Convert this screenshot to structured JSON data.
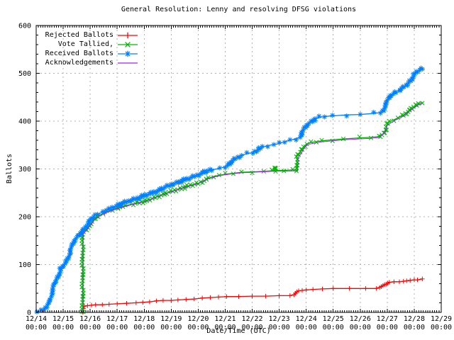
{
  "title": "General Resolution: Lenny and resolving DFSG violations",
  "axes": {
    "xlabel": "Date/Time (UTC)",
    "ylabel": "Ballots",
    "y_ticks": [
      "0",
      "100",
      "200",
      "300",
      "400",
      "500",
      "600"
    ],
    "x_ticks": [
      {
        "date": "12/14",
        "time": "00:00"
      },
      {
        "date": "12/15",
        "time": "00:00"
      },
      {
        "date": "12/16",
        "time": "00:00"
      },
      {
        "date": "12/17",
        "time": "00:00"
      },
      {
        "date": "12/18",
        "time": "00:00"
      },
      {
        "date": "12/19",
        "time": "00:00"
      },
      {
        "date": "12/20",
        "time": "00:00"
      },
      {
        "date": "12/21",
        "time": "00:00"
      },
      {
        "date": "12/22",
        "time": "00:00"
      },
      {
        "date": "12/23",
        "time": "00:00"
      },
      {
        "date": "12/24",
        "time": "00:00"
      },
      {
        "date": "12/25",
        "time": "00:00"
      },
      {
        "date": "12/26",
        "time": "00:00"
      },
      {
        "date": "12/27",
        "time": "00:00"
      },
      {
        "date": "12/28",
        "time": "00:00"
      },
      {
        "date": "12/29",
        "time": "00:00"
      }
    ]
  },
  "legend": {
    "entries": [
      "Rejected Ballots",
      "Vote Tallied,",
      "Received Ballots",
      "Acknowledgements"
    ]
  },
  "colors": {
    "background": "#ffffff",
    "axis": "#000000",
    "grid": "#b0b0b0",
    "rejected": "#ff0000",
    "tallied": "#00b800",
    "received": "#0080ff",
    "acknowledgements": "#a020f0"
  },
  "chart_data": {
    "type": "line",
    "title": "General Resolution: Lenny and resolving DFSG violations",
    "xlabel": "Date/Time (UTC)",
    "ylabel": "Ballots",
    "ylim": [
      0,
      600
    ],
    "x_axis": {
      "start_label": "12/14 00:00",
      "end_label": "12/29 00:00",
      "unit": "days since 12/14 00:00 UTC",
      "range_days": [
        0,
        15
      ]
    },
    "grid": true,
    "legend_position": "top-left",
    "series": [
      {
        "name": "Rejected Ballots",
        "color": "#ff0000",
        "marker": "plus",
        "marker_density": "points",
        "points": [
          [
            1.73,
            0
          ],
          [
            1.75,
            8
          ],
          [
            1.78,
            13
          ],
          [
            1.9,
            14
          ],
          [
            2.05,
            15
          ],
          [
            2.2,
            16
          ],
          [
            2.45,
            16
          ],
          [
            2.7,
            17
          ],
          [
            3.0,
            18
          ],
          [
            3.35,
            19
          ],
          [
            3.7,
            20
          ],
          [
            3.95,
            21
          ],
          [
            4.2,
            22
          ],
          [
            4.45,
            24
          ],
          [
            4.7,
            25
          ],
          [
            5.0,
            25
          ],
          [
            5.25,
            26
          ],
          [
            5.55,
            27
          ],
          [
            5.85,
            28
          ],
          [
            6.15,
            30
          ],
          [
            6.45,
            31
          ],
          [
            6.75,
            32
          ],
          [
            7.05,
            33
          ],
          [
            7.5,
            33
          ],
          [
            8.0,
            34
          ],
          [
            8.5,
            34
          ],
          [
            9.0,
            35
          ],
          [
            9.4,
            35
          ],
          [
            9.55,
            37
          ],
          [
            9.6,
            40
          ],
          [
            9.65,
            43
          ],
          [
            9.72,
            45
          ],
          [
            9.85,
            46
          ],
          [
            10.0,
            47
          ],
          [
            10.25,
            48
          ],
          [
            10.6,
            49
          ],
          [
            11.0,
            50
          ],
          [
            11.6,
            50
          ],
          [
            12.2,
            50
          ],
          [
            12.6,
            50
          ],
          [
            12.72,
            52
          ],
          [
            12.78,
            54
          ],
          [
            12.84,
            56
          ],
          [
            12.9,
            58
          ],
          [
            12.96,
            59
          ],
          [
            13.02,
            61
          ],
          [
            13.08,
            63
          ],
          [
            13.25,
            64
          ],
          [
            13.45,
            64
          ],
          [
            13.6,
            65
          ],
          [
            13.72,
            66
          ],
          [
            13.85,
            67
          ],
          [
            14.0,
            68
          ],
          [
            14.12,
            68
          ],
          [
            14.3,
            70
          ]
        ]
      },
      {
        "name": "Vote Tallied,",
        "color": "#00b800",
        "marker": "cross",
        "marker_density": "dense",
        "points": [
          [
            1.72,
            0
          ],
          [
            1.72,
            167
          ],
          [
            1.8,
            172
          ],
          [
            1.9,
            177
          ],
          [
            2.0,
            182
          ],
          [
            2.1,
            190
          ],
          [
            2.2,
            197
          ],
          [
            2.3,
            202
          ],
          [
            2.45,
            206
          ],
          [
            2.6,
            210
          ],
          [
            2.8,
            214
          ],
          [
            3.0,
            218
          ],
          [
            3.3,
            223
          ],
          [
            3.6,
            227
          ],
          [
            4.0,
            232
          ],
          [
            4.3,
            238
          ],
          [
            4.6,
            245
          ],
          [
            5.0,
            253
          ],
          [
            5.3,
            258
          ],
          [
            5.6,
            264
          ],
          [
            6.0,
            270
          ],
          [
            6.2,
            275
          ],
          [
            6.4,
            281
          ],
          [
            6.6,
            285
          ],
          [
            6.8,
            287
          ],
          [
            7.0,
            289
          ],
          [
            7.3,
            291
          ],
          [
            7.6,
            293
          ],
          [
            8.0,
            294
          ],
          [
            8.4,
            295
          ],
          [
            8.7,
            296
          ],
          [
            8.84,
            296
          ],
          [
            8.86,
            305
          ],
          [
            8.88,
            297
          ],
          [
            9.2,
            297
          ],
          [
            9.5,
            298
          ],
          [
            9.64,
            298
          ],
          [
            9.66,
            327
          ],
          [
            9.75,
            332
          ],
          [
            9.85,
            342
          ],
          [
            10.0,
            352
          ],
          [
            10.15,
            355
          ],
          [
            10.35,
            357
          ],
          [
            10.6,
            359
          ],
          [
            11.0,
            361
          ],
          [
            11.4,
            363
          ],
          [
            12.0,
            365
          ],
          [
            12.4,
            366
          ],
          [
            12.7,
            368
          ],
          [
            12.85,
            373
          ],
          [
            12.95,
            384
          ],
          [
            13.0,
            393
          ],
          [
            13.1,
            399
          ],
          [
            13.25,
            403
          ],
          [
            13.4,
            407
          ],
          [
            13.55,
            411
          ],
          [
            13.7,
            417
          ],
          [
            13.85,
            424
          ],
          [
            14.0,
            430
          ],
          [
            14.15,
            436
          ],
          [
            14.3,
            440
          ]
        ]
      },
      {
        "name": "Received Ballots",
        "color": "#0080ff",
        "marker": "star",
        "marker_density": "dense",
        "points": [
          [
            0,
            1
          ],
          [
            0.15,
            3
          ],
          [
            0.3,
            6
          ],
          [
            0.42,
            12
          ],
          [
            0.5,
            25
          ],
          [
            0.6,
            45
          ],
          [
            0.7,
            62
          ],
          [
            0.8,
            75
          ],
          [
            0.9,
            90
          ],
          [
            1.0,
            95
          ],
          [
            1.1,
            105
          ],
          [
            1.25,
            125
          ],
          [
            1.4,
            148
          ],
          [
            1.55,
            162
          ],
          [
            1.7,
            168
          ],
          [
            1.85,
            178
          ],
          [
            2.0,
            195
          ],
          [
            2.15,
            202
          ],
          [
            2.3,
            206
          ],
          [
            2.5,
            210
          ],
          [
            2.75,
            217
          ],
          [
            3.0,
            224
          ],
          [
            3.3,
            230
          ],
          [
            3.6,
            236
          ],
          [
            4.0,
            244
          ],
          [
            4.3,
            250
          ],
          [
            4.6,
            257
          ],
          [
            5.0,
            267
          ],
          [
            5.3,
            273
          ],
          [
            5.6,
            279
          ],
          [
            6.0,
            288
          ],
          [
            6.2,
            293
          ],
          [
            6.5,
            298
          ],
          [
            6.8,
            301
          ],
          [
            7.0,
            305
          ],
          [
            7.2,
            313
          ],
          [
            7.4,
            322
          ],
          [
            7.6,
            328
          ],
          [
            7.8,
            332
          ],
          [
            8.0,
            334
          ],
          [
            8.2,
            340
          ],
          [
            8.4,
            346
          ],
          [
            8.6,
            349
          ],
          [
            8.8,
            351
          ],
          [
            9.0,
            353
          ],
          [
            9.2,
            357
          ],
          [
            9.4,
            360
          ],
          [
            9.6,
            363
          ],
          [
            9.75,
            366
          ],
          [
            9.85,
            375
          ],
          [
            9.95,
            385
          ],
          [
            10.05,
            393
          ],
          [
            10.2,
            400
          ],
          [
            10.35,
            405
          ],
          [
            10.5,
            408
          ],
          [
            10.7,
            410
          ],
          [
            11.0,
            411
          ],
          [
            11.5,
            413
          ],
          [
            12.0,
            414
          ],
          [
            12.5,
            416
          ],
          [
            12.75,
            418
          ],
          [
            12.85,
            424
          ],
          [
            12.95,
            434
          ],
          [
            13.05,
            447
          ],
          [
            13.15,
            455
          ],
          [
            13.3,
            461
          ],
          [
            13.45,
            464
          ],
          [
            13.6,
            470
          ],
          [
            13.75,
            477
          ],
          [
            13.85,
            485
          ],
          [
            13.95,
            493
          ],
          [
            14.05,
            500
          ],
          [
            14.15,
            505
          ],
          [
            14.3,
            510
          ]
        ]
      },
      {
        "name": "Acknowledgements",
        "color": "#a020f0",
        "marker": "none",
        "marker_density": "line",
        "points": [
          [
            1.74,
            0
          ],
          [
            1.74,
            164
          ],
          [
            1.9,
            175
          ],
          [
            2.0,
            181
          ],
          [
            2.2,
            196
          ],
          [
            2.45,
            205
          ],
          [
            2.8,
            213
          ],
          [
            3.0,
            217
          ],
          [
            3.6,
            226
          ],
          [
            4.0,
            231
          ],
          [
            4.6,
            244
          ],
          [
            5.0,
            252
          ],
          [
            5.6,
            263
          ],
          [
            6.0,
            269
          ],
          [
            6.4,
            280
          ],
          [
            6.8,
            286
          ],
          [
            7.0,
            288
          ],
          [
            7.6,
            292
          ],
          [
            8.0,
            293
          ],
          [
            8.7,
            295
          ],
          [
            9.5,
            296
          ],
          [
            9.68,
            296
          ],
          [
            9.7,
            324
          ],
          [
            9.8,
            331
          ],
          [
            9.9,
            341
          ],
          [
            10.0,
            350
          ],
          [
            10.2,
            353
          ],
          [
            10.6,
            357
          ],
          [
            11.0,
            359
          ],
          [
            11.4,
            361
          ],
          [
            12.0,
            363
          ],
          [
            12.4,
            364
          ],
          [
            12.7,
            366
          ],
          [
            12.9,
            376
          ],
          [
            13.0,
            391
          ],
          [
            13.15,
            397
          ],
          [
            13.3,
            402
          ],
          [
            13.5,
            407
          ],
          [
            13.7,
            415
          ],
          [
            13.85,
            422
          ],
          [
            14.0,
            428
          ],
          [
            14.15,
            434
          ],
          [
            14.3,
            437
          ]
        ]
      }
    ]
  }
}
